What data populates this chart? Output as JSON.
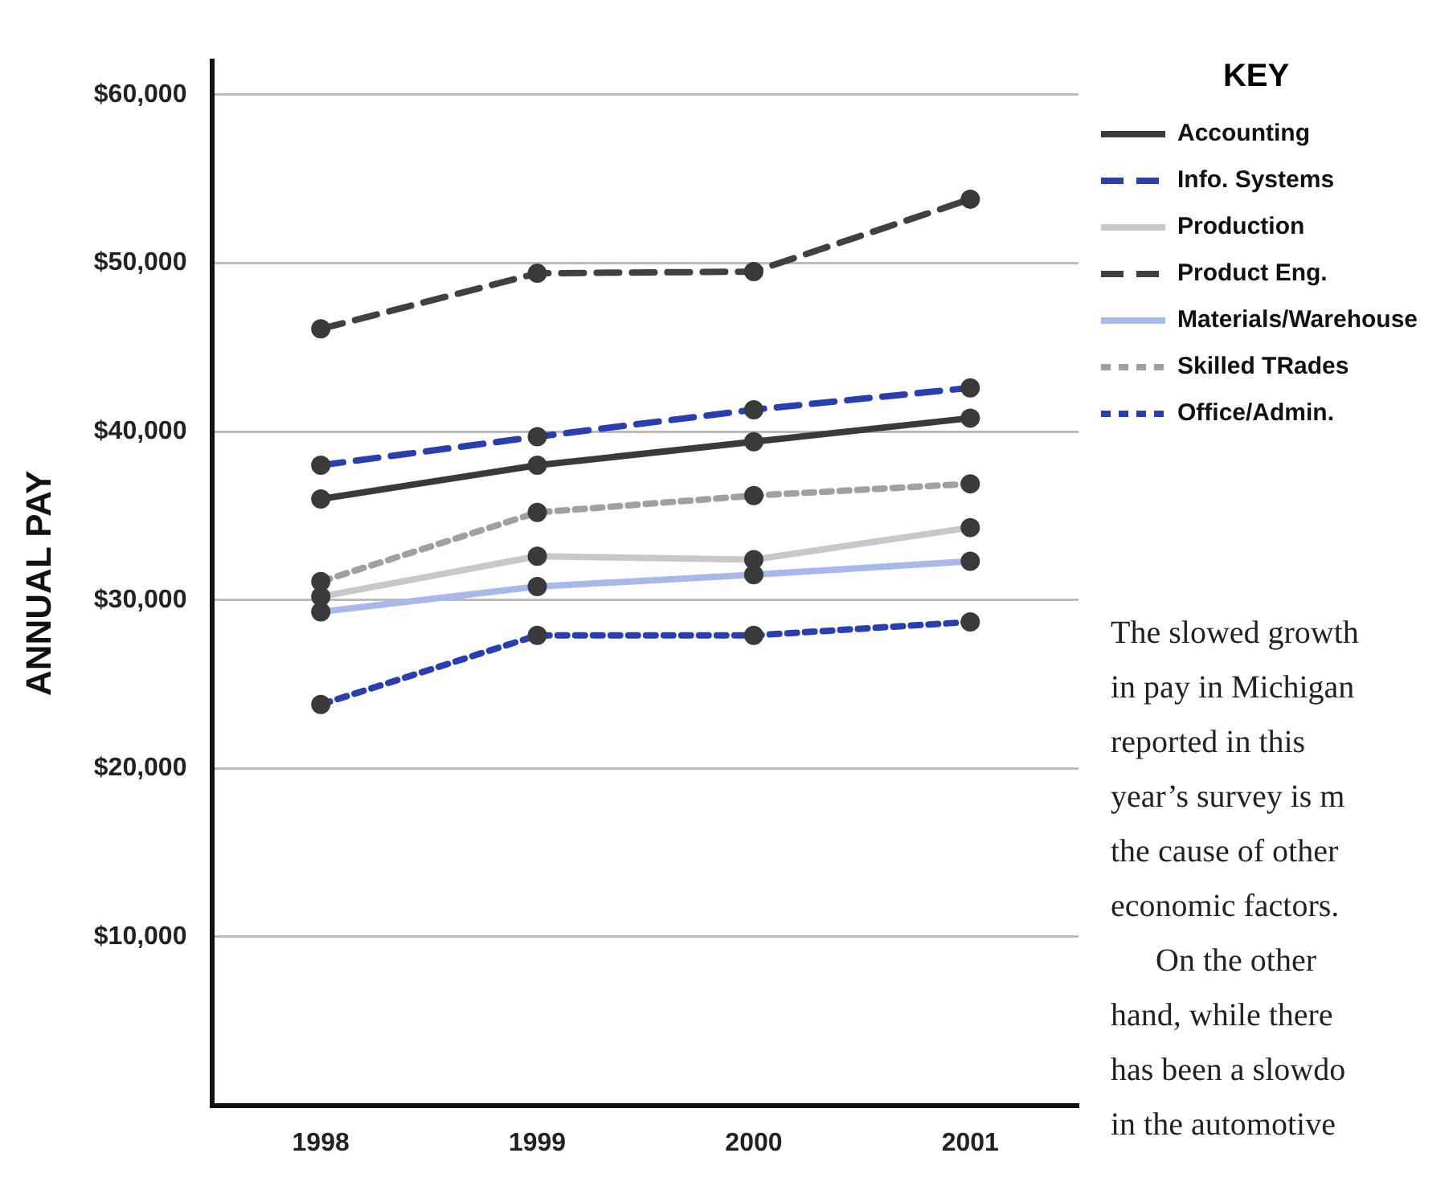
{
  "chart_data": {
    "type": "line",
    "ylabel": "ANNUAL PAY",
    "legend_title": "KEY",
    "legend": "top right",
    "grid": "y",
    "marker": "circle",
    "categories": [
      "1998",
      "1999",
      "2000",
      "2001"
    ],
    "ylim": [
      0,
      62000
    ],
    "yticks": [
      {
        "value": 10000,
        "label": "$10,000"
      },
      {
        "value": 20000,
        "label": "$20,000"
      },
      {
        "value": 30000,
        "label": "$30,000"
      },
      {
        "value": 40000,
        "label": "$40,000"
      },
      {
        "value": 50000,
        "label": "$50,000"
      },
      {
        "value": 60000,
        "label": "$60,000"
      }
    ],
    "series": [
      {
        "name": "Accounting",
        "color": "#3a3a3a",
        "line_style": "solid",
        "values": [
          36000,
          38000,
          39400,
          40800
        ]
      },
      {
        "name": "Info. Systems",
        "color": "#2a3eb0",
        "line_style": "dashed",
        "values": [
          38000,
          39700,
          41300,
          42600
        ]
      },
      {
        "name": "Production",
        "color": "#c8c8c8",
        "line_style": "solid",
        "values": [
          30200,
          32600,
          32400,
          34300
        ]
      },
      {
        "name": "Product Eng.",
        "color": "#404040",
        "line_style": "dashed",
        "values": [
          46100,
          49400,
          49500,
          53800
        ]
      },
      {
        "name": "Materials/Warehouse",
        "color": "#a8b8e8",
        "line_style": "solid",
        "values": [
          29300,
          30800,
          31500,
          32300
        ]
      },
      {
        "name": "Skilled TRades",
        "color": "#a0a0a0",
        "line_style": "dotted",
        "values": [
          31100,
          35200,
          36200,
          36900
        ]
      },
      {
        "name": "Office/Admin.",
        "color": "#2a3eb0",
        "line_style": "dotted",
        "values": [
          23800,
          27900,
          27900,
          28700
        ]
      }
    ],
    "annotations": [
      "The slowed growth",
      "in pay in Michigan",
      "reported in this",
      "year’s survey is m",
      "the cause of other",
      "economic factors.",
      "On the other",
      "hand, while there",
      "has been a slowdo",
      "in the automotive"
    ]
  }
}
